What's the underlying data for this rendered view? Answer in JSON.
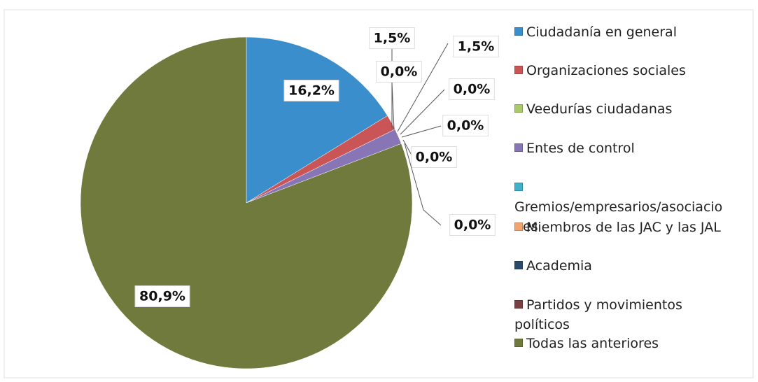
{
  "chart_data": {
    "type": "pie",
    "categories": [
      "Ciudadanía en general",
      "Organizaciones sociales",
      "Veedurías ciudadanas",
      "Entes de control",
      "Gremios/empresarios/asociaciones",
      "Miembros de las JAC y las JAL",
      "Academia",
      "Partidos y movimientos políticos",
      "Todas las anteriores"
    ],
    "values": [
      16.2,
      1.5,
      0.0,
      1.5,
      0.0,
      0.0,
      0.0,
      0.0,
      80.9
    ],
    "value_labels": [
      "16,2%",
      "1,5%",
      "0,0%",
      "1,5%",
      "0,0%",
      "0,0%",
      "0,0%",
      "0,0%",
      "80,9%"
    ],
    "colors": [
      "#3a8ecb",
      "#c95556",
      "#a9c96a",
      "#8775b6",
      "#3fb1cb",
      "#f2a470",
      "#2c4a6b",
      "#7a3f43",
      "#6f7a3c"
    ],
    "legend": "right"
  }
}
